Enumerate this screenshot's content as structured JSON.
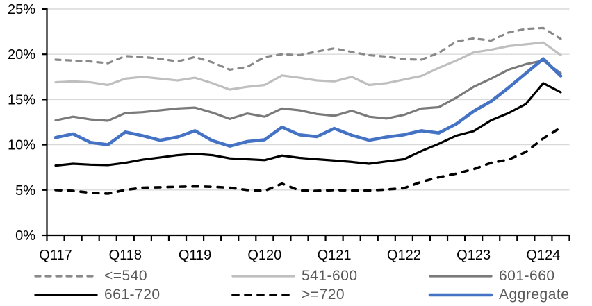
{
  "chart_data": {
    "type": "line",
    "title": "",
    "xlabel": "",
    "ylabel": "",
    "ylim": [
      0,
      25
    ],
    "ytick_labels": [
      "0%",
      "5%",
      "10%",
      "15%",
      "20%",
      "25%"
    ],
    "ytick_values": [
      0,
      5,
      10,
      15,
      20,
      25
    ],
    "grid": "horizontal",
    "gridline_values": [
      5,
      10,
      15,
      20,
      25
    ],
    "legend_position": "bottom",
    "n_points": 30,
    "x_minor_tick_count": 31,
    "x_label_indices": [
      0,
      4,
      8,
      12,
      16,
      20,
      24,
      28
    ],
    "x_labels_shown": [
      "Q117",
      "Q118",
      "Q119",
      "Q120",
      "Q121",
      "Q122",
      "Q123",
      "Q124"
    ],
    "series": [
      {
        "name": "<=540",
        "slug": "lte-540",
        "color": "#898989",
        "dash": "7 8",
        "width": 3.2,
        "values": [
          19.4,
          19.3,
          19.2,
          19.0,
          19.8,
          19.7,
          19.5,
          19.2,
          19.7,
          19.1,
          18.3,
          18.6,
          19.7,
          20.0,
          19.9,
          20.3,
          20.65,
          20.25,
          19.9,
          19.75,
          19.45,
          19.4,
          20.15,
          21.4,
          21.75,
          21.5,
          22.4,
          22.8,
          22.9,
          21.7
        ]
      },
      {
        "name": "541-600",
        "slug": "541-600",
        "color": "#BFBFBF",
        "dash": "",
        "width": 3.2,
        "values": [
          16.9,
          17.0,
          16.9,
          16.6,
          17.3,
          17.5,
          17.3,
          17.1,
          17.4,
          16.8,
          16.1,
          16.4,
          16.6,
          17.65,
          17.4,
          17.1,
          17.0,
          17.5,
          16.6,
          16.8,
          17.2,
          17.6,
          18.5,
          19.3,
          20.2,
          20.5,
          20.9,
          21.1,
          21.3,
          19.9
        ]
      },
      {
        "name": "601-660",
        "slug": "601-660",
        "color": "#7A7A7A",
        "dash": "",
        "width": 3.2,
        "values": [
          12.7,
          13.1,
          12.8,
          12.65,
          13.5,
          13.6,
          13.8,
          14.0,
          14.1,
          13.55,
          12.85,
          13.45,
          13.1,
          14.0,
          13.8,
          13.4,
          13.2,
          13.75,
          13.1,
          12.9,
          13.3,
          14.0,
          14.15,
          15.2,
          16.4,
          17.3,
          18.3,
          18.9,
          19.3,
          17.9
        ]
      },
      {
        "name": "661-720",
        "slug": "661-720",
        "color": "#000000",
        "dash": "",
        "width": 3.2,
        "values": [
          7.7,
          7.9,
          7.8,
          7.75,
          8.0,
          8.35,
          8.6,
          8.85,
          9.0,
          8.85,
          8.5,
          8.4,
          8.3,
          8.8,
          8.55,
          8.4,
          8.25,
          8.1,
          7.9,
          8.15,
          8.4,
          9.3,
          10.1,
          11.0,
          11.5,
          12.7,
          13.5,
          14.5,
          16.8,
          15.8
        ]
      },
      {
        "name": ">=720",
        "slug": "gte-720",
        "color": "#000000",
        "dash": "8 10",
        "width": 3.6,
        "values": [
          5.0,
          4.9,
          4.7,
          4.6,
          5.0,
          5.25,
          5.3,
          5.35,
          5.4,
          5.35,
          5.25,
          5.0,
          4.9,
          5.7,
          4.95,
          4.9,
          5.0,
          4.95,
          4.95,
          5.05,
          5.2,
          5.9,
          6.4,
          6.8,
          7.3,
          8.0,
          8.35,
          9.2,
          10.7,
          11.9
        ]
      },
      {
        "name": "Aggregate",
        "slug": "aggregate",
        "color": "#4472C4",
        "dash": "",
        "width": 4.6,
        "values": [
          10.8,
          11.2,
          10.25,
          10.0,
          11.4,
          11.0,
          10.5,
          10.85,
          11.55,
          10.45,
          9.85,
          10.35,
          10.55,
          11.95,
          11.1,
          10.9,
          11.8,
          11.05,
          10.5,
          10.85,
          11.1,
          11.55,
          11.3,
          12.3,
          13.7,
          14.8,
          16.3,
          17.9,
          19.5,
          17.6
        ]
      }
    ],
    "legend_rows": [
      [
        "lte-540",
        "541-600",
        "601-660"
      ],
      [
        "661-720",
        "gte-720",
        "aggregate"
      ]
    ]
  },
  "style_colors": {
    "gridline": "#D9D9D9",
    "axis": "#000000",
    "axis_text": "#000000",
    "legend_text": "#595959",
    "background": "#FFFFFF"
  }
}
